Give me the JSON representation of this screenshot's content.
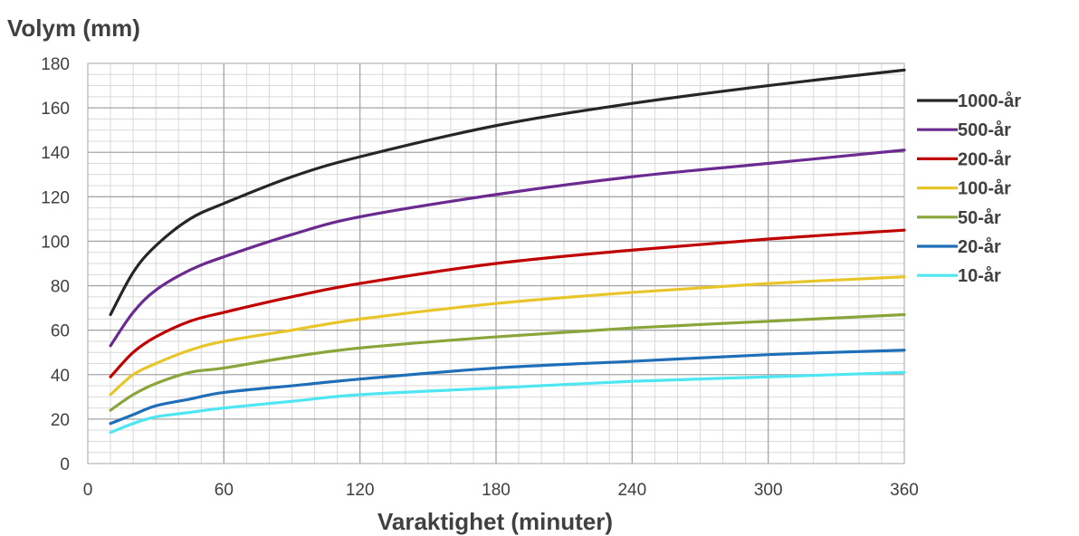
{
  "chart_data": {
    "type": "line",
    "title": "",
    "ylabel": "Volym (mm)",
    "xlabel": "Varaktighet (minuter)",
    "xlim": [
      0,
      360
    ],
    "ylim": [
      0,
      180
    ],
    "x_ticks": [
      0,
      60,
      120,
      180,
      240,
      300,
      360
    ],
    "y_ticks": [
      0,
      20,
      40,
      60,
      80,
      100,
      120,
      140,
      160,
      180
    ],
    "grid": true,
    "legend_position": "right",
    "x": [
      10,
      20,
      30,
      45,
      60,
      90,
      120,
      180,
      240,
      300,
      360
    ],
    "series": [
      {
        "name": "1000-år",
        "color": "#262626",
        "values": [
          67,
          86,
          98,
          110,
          117,
          129,
          138,
          152,
          162,
          170,
          177
        ]
      },
      {
        "name": "500-år",
        "color": "#6a2a8f",
        "values": [
          53,
          68,
          78,
          87,
          93,
          103,
          111,
          121,
          129,
          135,
          141
        ]
      },
      {
        "name": "200-år",
        "color": "#c00000",
        "values": [
          39,
          50,
          57,
          64,
          68,
          75,
          81,
          90,
          96,
          101,
          105
        ]
      },
      {
        "name": "100-år",
        "color": "#e8c62a",
        "values": [
          31,
          40,
          45,
          51,
          55,
          60,
          65,
          72,
          77,
          81,
          84
        ]
      },
      {
        "name": "50-år",
        "color": "#8aa53a",
        "values": [
          24,
          31,
          36,
          41,
          43,
          48,
          52,
          57,
          61,
          64,
          67
        ]
      },
      {
        "name": "20-år",
        "color": "#1f6fb8",
        "values": [
          18,
          22,
          26,
          29,
          32,
          35,
          38,
          43,
          46,
          49,
          51
        ]
      },
      {
        "name": "10-år",
        "color": "#4ee6f2",
        "values": [
          14,
          18,
          21,
          23,
          25,
          28,
          31,
          34,
          37,
          39,
          41
        ]
      }
    ]
  }
}
